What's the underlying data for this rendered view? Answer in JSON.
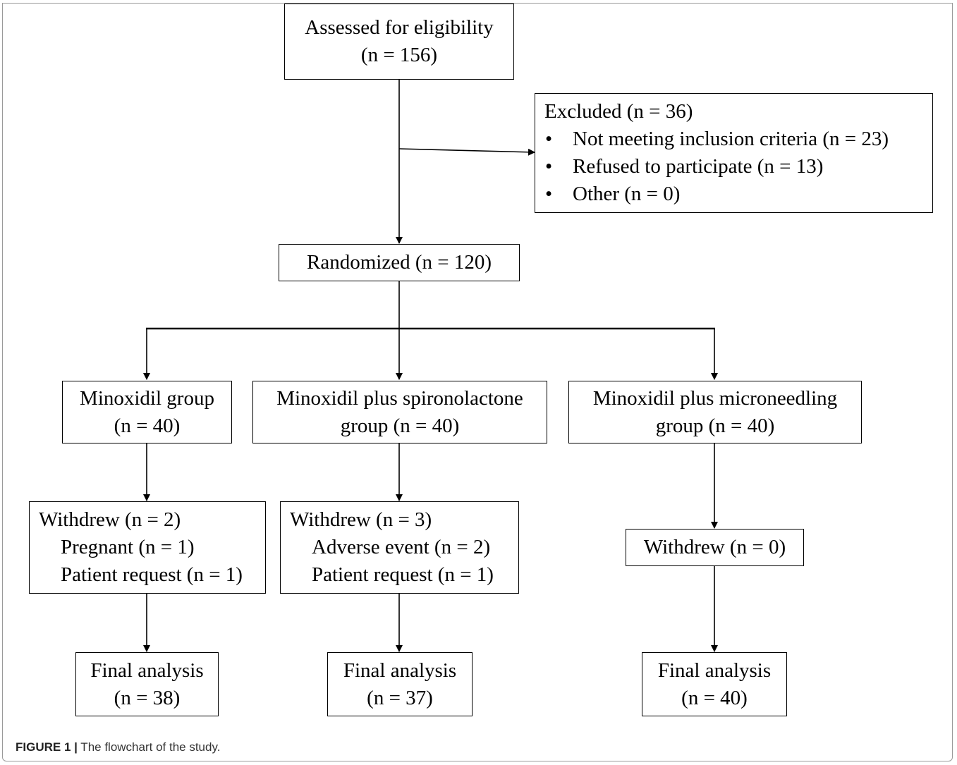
{
  "assessed": {
    "line1": "Assessed for eligibility",
    "line2": "(n = 156)"
  },
  "excluded": {
    "title": "Excluded (n = 36)",
    "items": [
      "Not meeting inclusion criteria (n = 23)",
      "Refused to participate (n = 13)",
      "Other (n = 0)"
    ],
    "bullet": "•"
  },
  "randomized": {
    "label": "Randomized (n = 120)"
  },
  "groups": [
    {
      "line1": "Minoxidil group",
      "line2": "(n = 40)"
    },
    {
      "line1": "Minoxidil plus spironolactone",
      "line2": "group (n = 40)"
    },
    {
      "line1": "Minoxidil plus microneedling",
      "line2": "group (n = 40)"
    }
  ],
  "withdrew": [
    {
      "title": "Withdrew (n = 2)",
      "items": [
        "Pregnant (n = 1)",
        "Patient request (n = 1)"
      ]
    },
    {
      "title": "Withdrew (n = 3)",
      "items": [
        "Adverse event (n = 2)",
        "Patient request (n = 1)"
      ]
    },
    {
      "title": "Withdrew (n = 0)",
      "items": []
    }
  ],
  "final": [
    {
      "line1": "Final analysis",
      "line2": "(n = 38)"
    },
    {
      "line1": "Final analysis",
      "line2": "(n = 37)"
    },
    {
      "line1": "Final analysis",
      "line2": "(n = 40)"
    }
  ],
  "caption": {
    "label": "FIGURE 1 |",
    "text": " The flowchart of the study."
  }
}
